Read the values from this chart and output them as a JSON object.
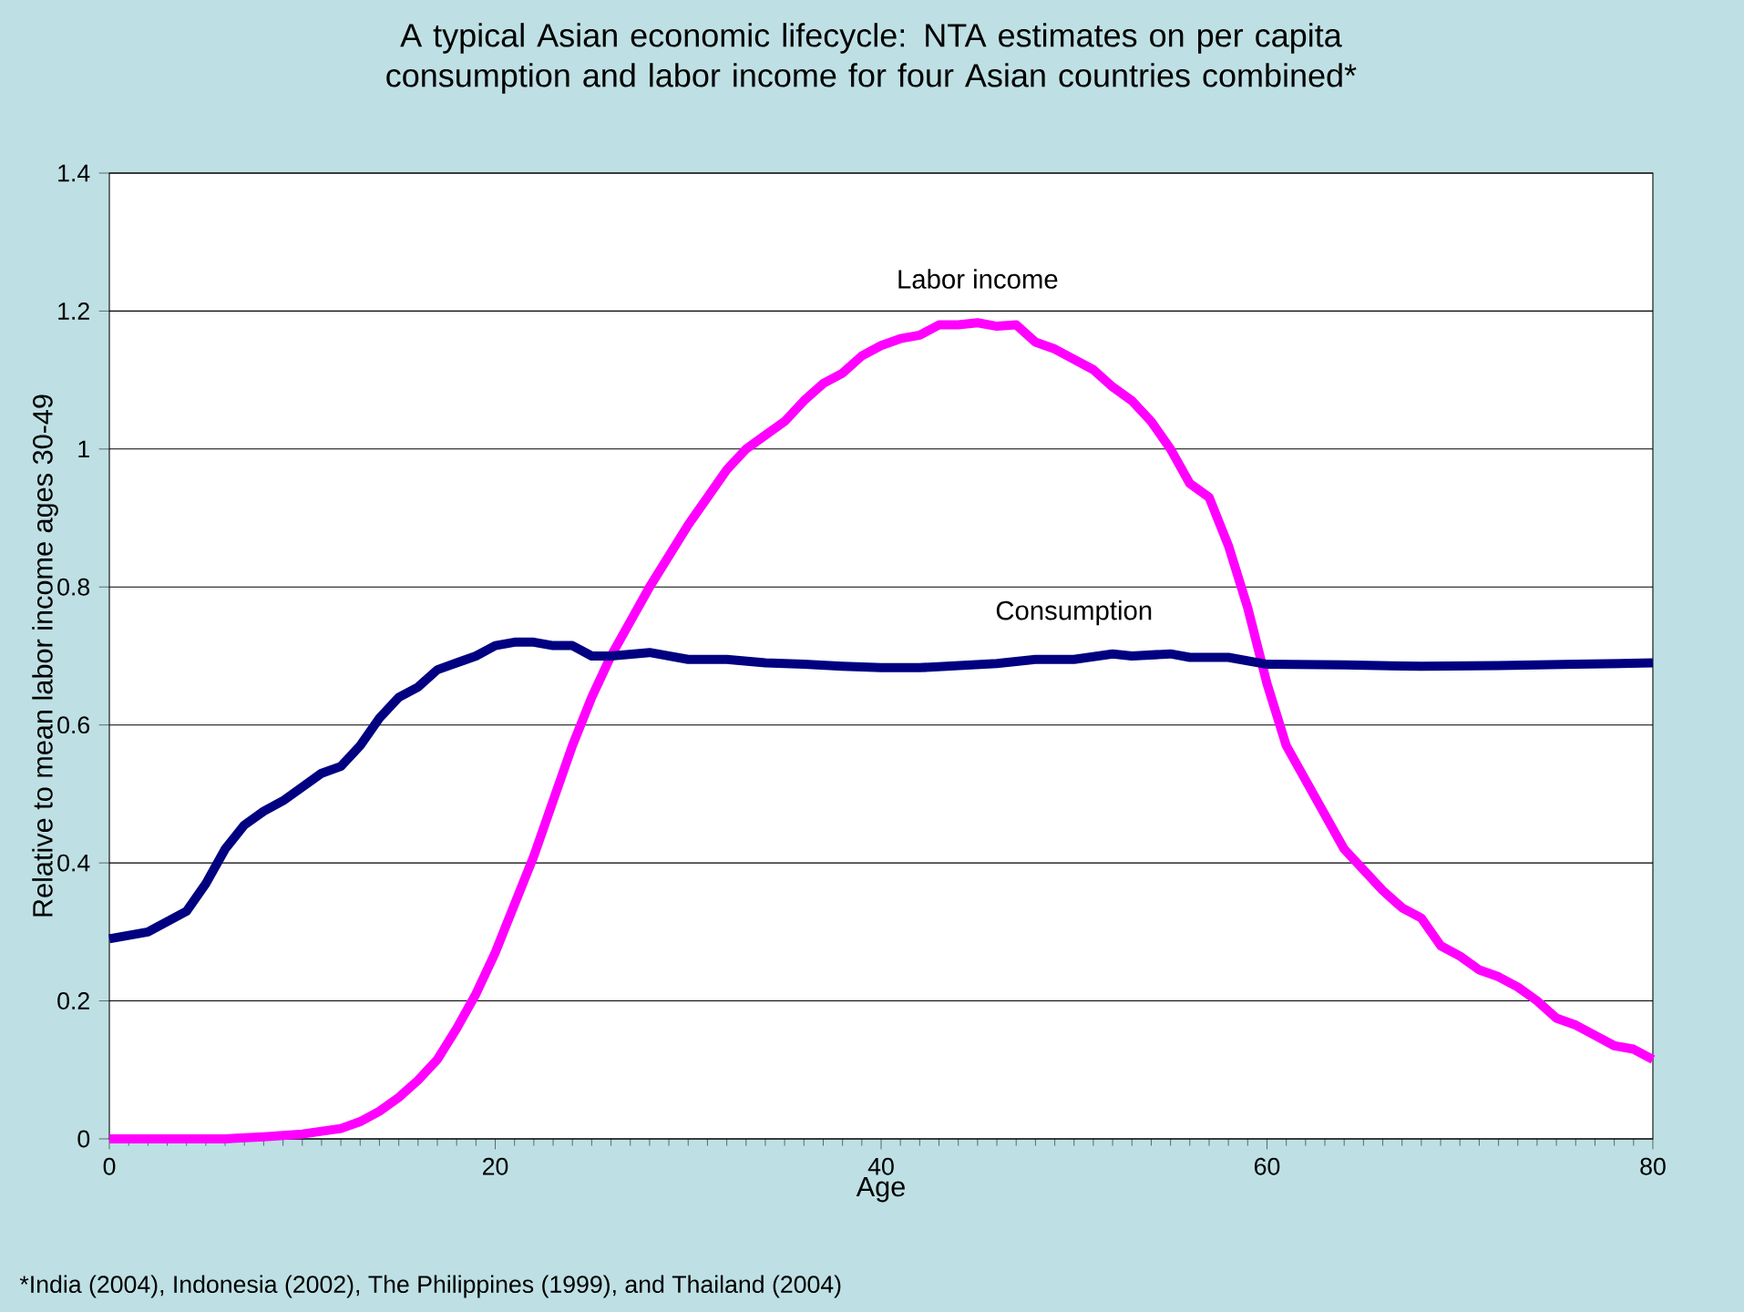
{
  "chart_data": {
    "type": "line",
    "title": "A typical Asian economic lifecycle: NTA estimates on per capita consumption and labor income for four Asian countries combined*",
    "xlabel": "Age",
    "ylabel": "Relative to mean labor income ages 30-49",
    "xlim": [
      0,
      80
    ],
    "xticks": [
      0,
      20,
      40,
      60,
      80
    ],
    "ylim": [
      0,
      1.4
    ],
    "yticks": [
      0,
      {
        "value": 0.2,
        "label": "0.2"
      },
      {
        "value": 0.4,
        "label": "0.4"
      },
      {
        "value": 0.6,
        "label": "0.6"
      },
      {
        "value": 0.8,
        "label": "0.8"
      },
      1,
      {
        "value": 1.2,
        "label": "1.2"
      },
      {
        "value": 1.4,
        "label": "1.4"
      }
    ],
    "grid": "y",
    "legend": false,
    "marker": "none",
    "line_style": "solid",
    "series": [
      {
        "name": "Labor income",
        "color": "#ff00ff",
        "x": [
          0,
          2,
          4,
          6,
          8,
          10,
          12,
          13,
          14,
          15,
          16,
          17,
          18,
          19,
          20,
          21,
          22,
          23,
          24,
          25,
          26,
          27,
          28,
          29,
          30,
          31,
          32,
          33,
          34,
          35,
          36,
          37,
          38,
          39,
          40,
          41,
          42,
          43,
          44,
          45,
          46,
          47,
          48,
          49,
          50,
          51,
          52,
          53,
          54,
          55,
          56,
          57,
          58,
          59,
          60,
          61,
          62,
          63,
          64,
          65,
          66,
          67,
          68,
          69,
          70,
          71,
          72,
          73,
          74,
          75,
          76,
          77,
          78,
          79,
          80
        ],
        "values": [
          0,
          0,
          0,
          0,
          0.003,
          0.007,
          0.015,
          0.025,
          0.04,
          0.06,
          0.085,
          0.115,
          0.16,
          0.21,
          0.27,
          0.34,
          0.41,
          0.49,
          0.57,
          0.64,
          0.7,
          0.75,
          0.8,
          0.845,
          0.89,
          0.93,
          0.97,
          1.0,
          1.02,
          1.04,
          1.07,
          1.095,
          1.11,
          1.135,
          1.15,
          1.16,
          1.165,
          1.18,
          1.18,
          1.183,
          1.178,
          1.18,
          1.155,
          1.145,
          1.13,
          1.115,
          1.09,
          1.07,
          1.04,
          1.0,
          0.95,
          0.93,
          0.86,
          0.77,
          0.66,
          0.57,
          0.52,
          0.47,
          0.42,
          0.39,
          0.36,
          0.335,
          0.32,
          0.28,
          0.265,
          0.245,
          0.235,
          0.22,
          0.2,
          0.175,
          0.165,
          0.15,
          0.135,
          0.13,
          0.115
        ]
      },
      {
        "name": "Consumption",
        "color": "#000080",
        "x": [
          0,
          2,
          4,
          5,
          6,
          7,
          8,
          9,
          10,
          11,
          12,
          13,
          14,
          15,
          16,
          17,
          18,
          19,
          20,
          21,
          22,
          23,
          24,
          25,
          26,
          28,
          30,
          32,
          34,
          36,
          38,
          40,
          42,
          44,
          46,
          48,
          50,
          52,
          53,
          55,
          56,
          58,
          60,
          64,
          68,
          72,
          76,
          80
        ],
        "values": [
          0.29,
          0.3,
          0.33,
          0.37,
          0.42,
          0.455,
          0.475,
          0.49,
          0.51,
          0.53,
          0.54,
          0.57,
          0.61,
          0.64,
          0.655,
          0.68,
          0.69,
          0.7,
          0.715,
          0.72,
          0.72,
          0.715,
          0.715,
          0.7,
          0.7,
          0.705,
          0.695,
          0.695,
          0.69,
          0.688,
          0.685,
          0.683,
          0.683,
          0.686,
          0.689,
          0.695,
          0.695,
          0.703,
          0.7,
          0.703,
          0.698,
          0.698,
          0.688,
          0.687,
          0.685,
          0.686,
          0.688,
          0.69
        ]
      }
    ],
    "annotations": [
      "*India (2004), Indonesia (2002), The Philippines (1999), and Thailand (2004)"
    ]
  }
}
